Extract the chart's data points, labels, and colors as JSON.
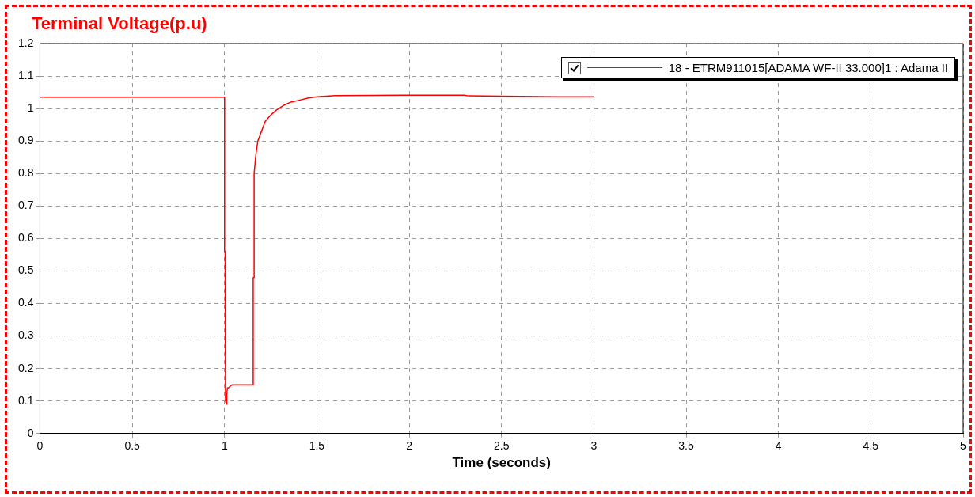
{
  "chart_data": {
    "type": "line",
    "title": "Terminal Voltage(p.u)",
    "xlabel": "Time (seconds)",
    "x": [
      0,
      1.0,
      1.0,
      1.003,
      1.005,
      1.01,
      1.012,
      1.015,
      1.02,
      1.03,
      1.04,
      1.06,
      1.1,
      1.155,
      1.155,
      1.16,
      1.16,
      1.17,
      1.18,
      1.2,
      1.22,
      1.25,
      1.28,
      1.32,
      1.36,
      1.4,
      1.45,
      1.5,
      1.6,
      2.0,
      2.3,
      2.32,
      2.5,
      2.8,
      3.0
    ],
    "series": [
      {
        "name": "18 - ETRM911015[ADAMA WF-II 33.000]1 : Adama II",
        "color": "#ff0000",
        "values": [
          1.035,
          1.035,
          0.56,
          0.56,
          0.1,
          0.09,
          0.12,
          0.14,
          0.14,
          0.145,
          0.15,
          0.15,
          0.15,
          0.15,
          0.48,
          0.48,
          0.8,
          0.86,
          0.9,
          0.93,
          0.96,
          0.98,
          0.995,
          1.01,
          1.02,
          1.025,
          1.032,
          1.036,
          1.04,
          1.041,
          1.041,
          1.039,
          1.038,
          1.036,
          1.036
        ]
      }
    ],
    "xlim": [
      0,
      5
    ],
    "ylim": [
      0,
      1.2
    ],
    "xticks": [
      0,
      0.5,
      1,
      1.5,
      2,
      2.5,
      3,
      3.5,
      4,
      4.5,
      5
    ],
    "yticks": [
      0,
      0.1,
      0.2,
      0.3,
      0.4,
      0.5,
      0.6,
      0.7,
      0.8,
      0.9,
      1,
      1.1,
      1.2
    ],
    "grid": true,
    "legend": "top right",
    "marker": "none",
    "line_style": "solid"
  }
}
